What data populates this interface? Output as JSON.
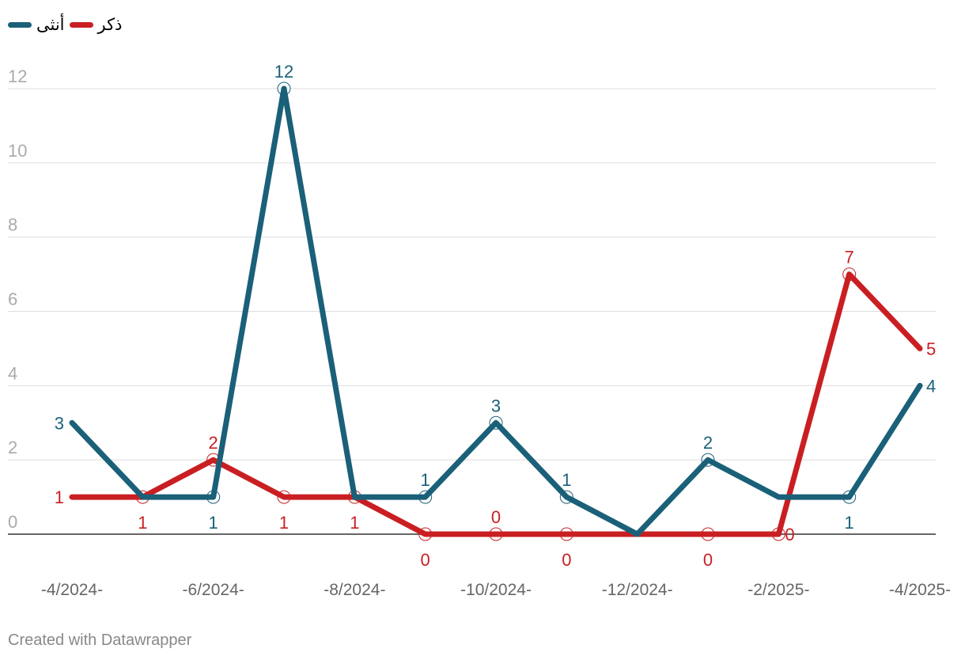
{
  "colors": {
    "female": "#1a6078",
    "male": "#c91f22",
    "grid": "#dddddd",
    "axis": "#333333",
    "ytick": "#aaaaaa",
    "xtick": "#666666"
  },
  "footer": {
    "credit": "Created with Datawrapper"
  },
  "chart_data": {
    "type": "line",
    "title": "",
    "xlabel": "",
    "ylabel": "",
    "ylim": [
      0,
      12
    ],
    "yticks": [
      "0",
      "2",
      "4",
      "6",
      "8",
      "10",
      "12"
    ],
    "grid": true,
    "legend_position": "top-left",
    "x": [
      "2024-04",
      "2024-05",
      "2024-06",
      "2024-07",
      "2024-08",
      "2024-09",
      "2024-10",
      "2024-11",
      "2024-12",
      "2025-01",
      "2025-02",
      "2025-03",
      "2025-04"
    ],
    "xtick_labels": [
      "-4/2024-",
      "-6/2024-",
      "-8/2024-",
      "-10/2024-",
      "-12/2024-",
      "-2/2025-",
      "-4/2025-"
    ],
    "series": [
      {
        "key": "female",
        "name": "أنثى",
        "values": [
          3,
          1,
          1,
          12,
          1,
          1,
          3,
          1,
          0,
          2,
          1,
          1,
          4
        ],
        "labels": [
          "3",
          "",
          "1",
          "12",
          "",
          "1",
          "3",
          "1",
          "",
          "2",
          "",
          "1",
          "4"
        ]
      },
      {
        "key": "male",
        "name": "ذكر",
        "values": [
          1,
          1,
          2,
          1,
          1,
          0,
          0,
          0,
          0,
          0,
          0,
          7,
          5
        ],
        "labels": [
          "1",
          "1",
          "2",
          "1",
          "1",
          "0",
          "0",
          "0",
          "",
          "0",
          "0",
          "7",
          "5"
        ]
      }
    ]
  }
}
